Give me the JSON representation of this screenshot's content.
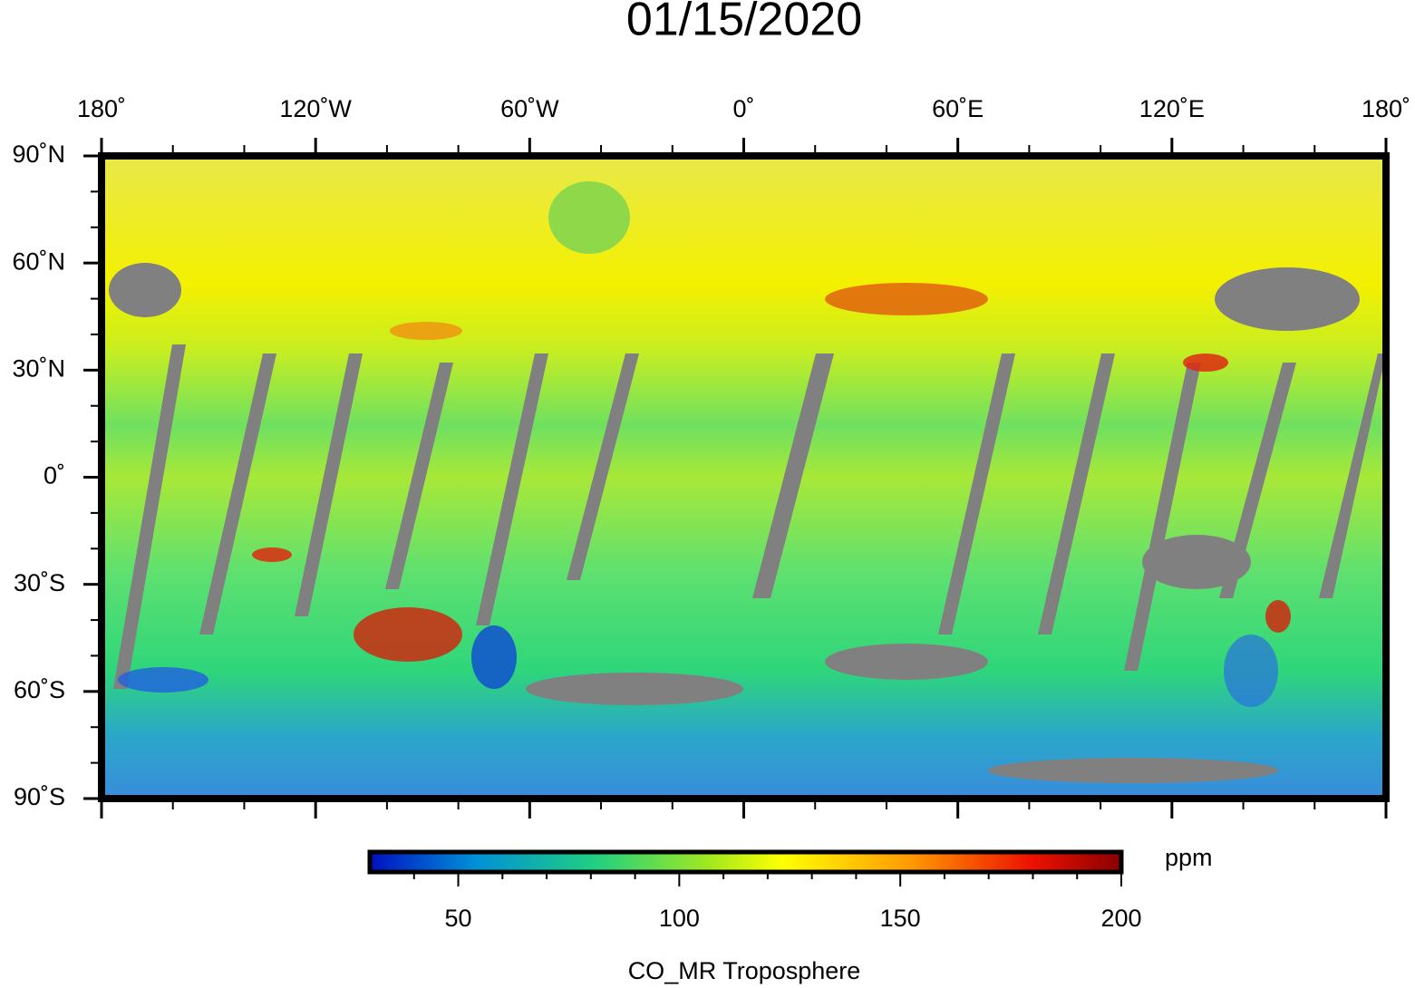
{
  "title": "01/15/2020",
  "map": {
    "lonlim": [
      -180,
      180
    ],
    "latlim": [
      -90,
      90
    ],
    "lon_ticks": [
      {
        "value": -180,
        "label": "180˚"
      },
      {
        "value": -120,
        "label": "120˚W"
      },
      {
        "value": -60,
        "label": "60˚W"
      },
      {
        "value": 0,
        "label": "0˚"
      },
      {
        "value": 60,
        "label": "60˚E"
      },
      {
        "value": 120,
        "label": "120˚E"
      },
      {
        "value": 180,
        "label": "180˚"
      }
    ],
    "lon_minor_ticks": [
      -160,
      -140,
      -100,
      -80,
      -40,
      -20,
      20,
      40,
      80,
      100,
      140,
      160
    ],
    "lat_ticks": [
      {
        "value": 90,
        "label": "90˚N"
      },
      {
        "value": 60,
        "label": "60˚N"
      },
      {
        "value": 30,
        "label": "30˚N"
      },
      {
        "value": 0,
        "label": "0˚"
      },
      {
        "value": -30,
        "label": "30˚S"
      },
      {
        "value": -60,
        "label": "60˚S"
      },
      {
        "value": -90,
        "label": "90˚S"
      }
    ],
    "lat_minor_ticks": [
      80,
      70,
      50,
      40,
      20,
      10,
      -10,
      -20,
      -40,
      -50,
      -70,
      -80
    ]
  },
  "colorbar": {
    "range": [
      30,
      200
    ],
    "ticks": [
      50,
      100,
      150,
      200
    ],
    "minor_ticks": [
      40,
      60,
      70,
      80,
      90,
      110,
      120,
      130,
      140,
      160,
      170,
      180,
      190
    ],
    "unit": "ppm",
    "label": "CO_MR Troposphere"
  }
}
